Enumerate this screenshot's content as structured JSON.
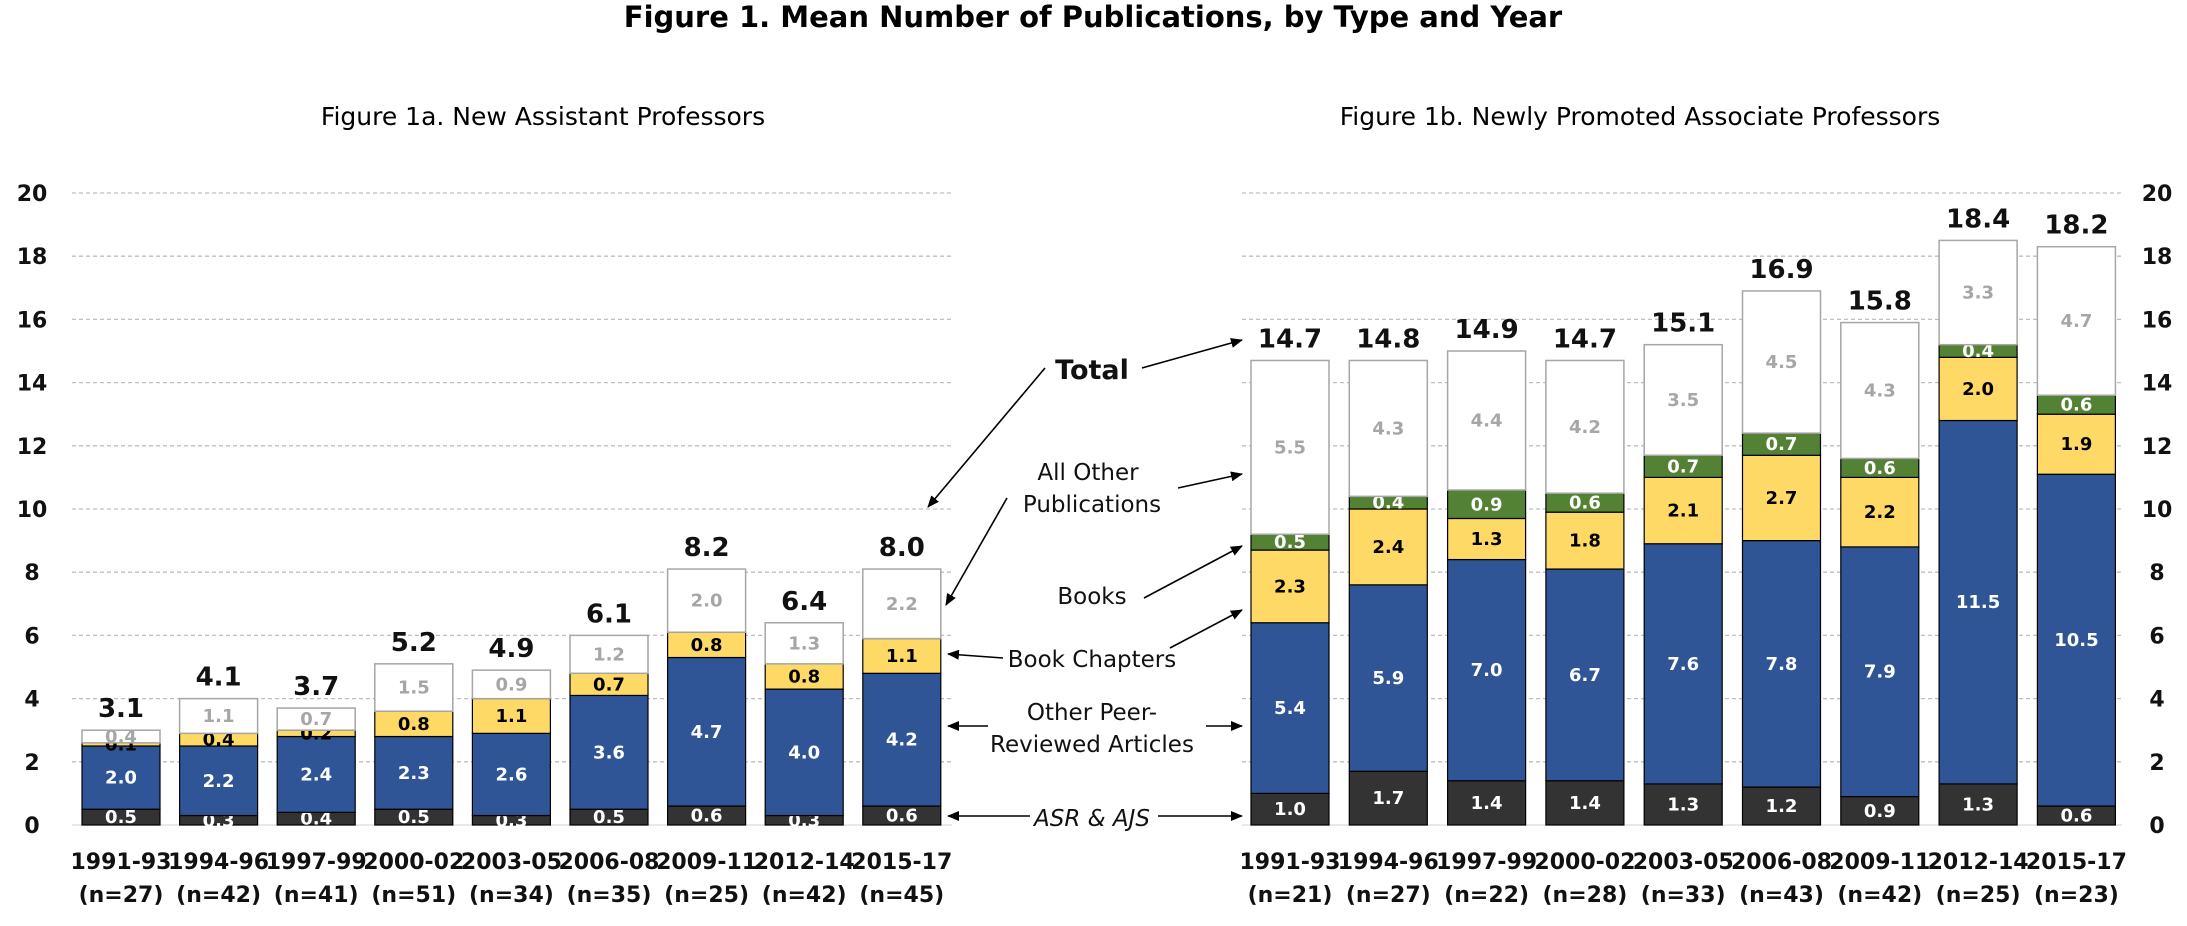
{
  "title": "Figure 1. Mean Number of Publications, by Type and Year",
  "colors": {
    "asr_ajs": "#333333",
    "peer": "#2F5597",
    "chapters": "#FFD966",
    "books": "#548235",
    "other": "#FFFFFF",
    "other_stroke": "#A6A6A6",
    "other_text": "#A6A6A6",
    "grid": "#BFBFBF"
  },
  "annotations": {
    "total": "Total",
    "other_line1": "All Other",
    "other_line2": "Publications",
    "books": "Books",
    "chapters": "Book Chapters",
    "peer_line1": "Other Peer-",
    "peer_line2": "Reviewed Articles",
    "asr": "ASR & AJS"
  },
  "chart_data": [
    {
      "type": "bar",
      "stacked": true,
      "title": "Figure 1a. New Assistant Professors",
      "ylim": [
        0,
        20
      ],
      "yticks": [
        0,
        2,
        4,
        6,
        8,
        10,
        12,
        14,
        16,
        18,
        20
      ],
      "grid": true,
      "categories": [
        "1991-93",
        "1994-96",
        "1997-99",
        "2000-02",
        "2003-05",
        "2006-08",
        "2009-11",
        "2012-14",
        "2015-17"
      ],
      "n_labels": [
        "(n=27)",
        "(n=42)",
        "(n=41)",
        "(n=51)",
        "(n=34)",
        "(n=35)",
        "(n=25)",
        "(n=42)",
        "(n=45)"
      ],
      "series": [
        {
          "name": "ASR & AJS",
          "values": [
            0.5,
            0.3,
            0.4,
            0.5,
            0.3,
            0.5,
            0.6,
            0.3,
            0.6
          ]
        },
        {
          "name": "Other Peer-Reviewed Articles",
          "values": [
            2.0,
            2.2,
            2.4,
            2.3,
            2.6,
            3.6,
            4.7,
            4.0,
            4.2
          ]
        },
        {
          "name": "Book Chapters",
          "values": [
            0.1,
            0.4,
            0.2,
            0.8,
            1.1,
            0.7,
            0.8,
            0.8,
            1.1
          ]
        },
        {
          "name": "Books",
          "values": [
            null,
            null,
            null,
            null,
            null,
            null,
            null,
            null,
            null
          ]
        },
        {
          "name": "All Other Publications",
          "values": [
            0.4,
            1.1,
            0.7,
            1.5,
            0.9,
            1.2,
            2.0,
            1.3,
            2.2
          ]
        }
      ],
      "totals": [
        3.1,
        4.1,
        3.7,
        5.2,
        4.9,
        6.1,
        8.2,
        6.4,
        8.0
      ]
    },
    {
      "type": "bar",
      "stacked": true,
      "title": "Figure 1b. Newly Promoted Associate Professors",
      "ylim": [
        0,
        20
      ],
      "yticks": [
        0,
        2,
        4,
        6,
        8,
        10,
        12,
        14,
        16,
        18,
        20
      ],
      "grid": true,
      "categories": [
        "1991-93",
        "1994-96",
        "1997-99",
        "2000-02",
        "2003-05",
        "2006-08",
        "2009-11",
        "2012-14",
        "2015-17"
      ],
      "n_labels": [
        "(n=21)",
        "(n=27)",
        "(n=22)",
        "(n=28)",
        "(n=33)",
        "(n=43)",
        "(n=42)",
        "(n=25)",
        "(n=23)"
      ],
      "series": [
        {
          "name": "ASR & AJS",
          "values": [
            1.0,
            1.7,
            1.4,
            1.4,
            1.3,
            1.2,
            0.9,
            1.3,
            0.6
          ]
        },
        {
          "name": "Other Peer-Reviewed Articles",
          "values": [
            5.4,
            5.9,
            7.0,
            6.7,
            7.6,
            7.8,
            7.9,
            11.5,
            10.5
          ]
        },
        {
          "name": "Book Chapters",
          "values": [
            2.3,
            2.4,
            1.3,
            1.8,
            2.1,
            2.7,
            2.2,
            2.0,
            1.9
          ]
        },
        {
          "name": "Books",
          "values": [
            0.5,
            0.4,
            0.9,
            0.6,
            0.7,
            0.7,
            0.6,
            0.4,
            0.6
          ]
        },
        {
          "name": "All Other Publications",
          "values": [
            5.5,
            4.3,
            4.4,
            4.2,
            3.5,
            4.5,
            4.3,
            3.3,
            4.7
          ]
        }
      ],
      "totals": [
        14.7,
        14.8,
        14.9,
        14.7,
        15.1,
        16.9,
        15.8,
        18.4,
        18.2
      ]
    }
  ]
}
